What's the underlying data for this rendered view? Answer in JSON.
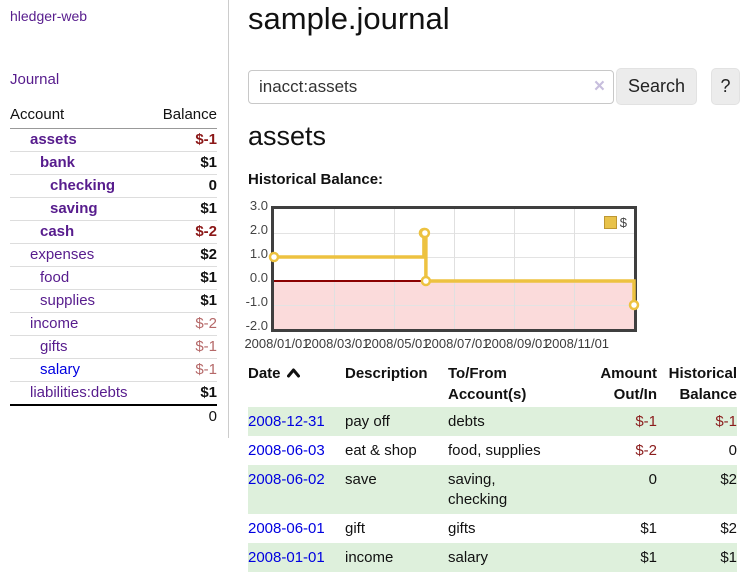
{
  "brand": "hledger-web",
  "nav": {
    "journal": "Journal"
  },
  "sidebar": {
    "account_header": "Account",
    "balance_header": "Balance",
    "accounts": [
      {
        "name": "assets",
        "balance": "$-1"
      },
      {
        "name": "bank",
        "balance": "$1"
      },
      {
        "name": "checking",
        "balance": "0"
      },
      {
        "name": "saving",
        "balance": "$1"
      },
      {
        "name": "cash",
        "balance": "$-2"
      },
      {
        "name": "expenses",
        "balance": "$2"
      },
      {
        "name": "food",
        "balance": "$1"
      },
      {
        "name": "supplies",
        "balance": "$1"
      },
      {
        "name": "income",
        "balance": "$-2"
      },
      {
        "name": "gifts",
        "balance": "$-1"
      },
      {
        "name": "salary",
        "balance": "$-1"
      },
      {
        "name": "liabilities:debts",
        "balance": "$1"
      }
    ],
    "total": "0"
  },
  "header": {
    "title": "sample.journal"
  },
  "search": {
    "value": "inacct:assets",
    "clear_icon": "×",
    "search_button": "Search",
    "help_button": "?"
  },
  "account_page": {
    "heading": "assets",
    "chart_title": "Historical Balance:"
  },
  "chart_data": {
    "type": "line",
    "title": "Historical Balance",
    "series": [
      {
        "name": "$",
        "step": true,
        "points": [
          [
            "2008-01-01",
            1
          ],
          [
            "2008-06-01",
            2
          ],
          [
            "2008-06-02",
            2
          ],
          [
            "2008-06-03",
            0
          ],
          [
            "2008-12-31",
            -1
          ]
        ]
      }
    ],
    "xrange": [
      "2008-01-01",
      "2008-12-31"
    ],
    "ylim": [
      -2,
      3
    ],
    "yticks": [
      "3.0",
      "2.0",
      "1.0",
      "0.0",
      "-1.0",
      "-2.0"
    ],
    "xticks": [
      "2008/01/01",
      "2008/03/01",
      "2008/05/01",
      "2008/07/01",
      "2008/09/01",
      "2008/11/01"
    ],
    "legend": [
      {
        "label": "$",
        "color": "#edc240"
      }
    ],
    "legend_position": "top-right",
    "grid": true,
    "line_color": "#edc240",
    "negative_fill": "#fbdbdb",
    "zero_line_color": "#8b0000"
  },
  "register": {
    "col_date": "Date",
    "col_description": "Description",
    "col_tofrom": "To/From\nAccount(s)",
    "col_amount": "Amount\nOut/In",
    "col_balance": "Historical\nBalance",
    "rows": [
      {
        "date": "2008-12-31",
        "description": "pay off",
        "accounts": "debts",
        "amount": "$-1",
        "balance": "$-1"
      },
      {
        "date": "2008-06-03",
        "description": "eat & shop",
        "accounts": "food, supplies",
        "amount": "$-2",
        "balance": "0"
      },
      {
        "date": "2008-06-02",
        "description": "save",
        "accounts": "saving,\nchecking",
        "amount": "0",
        "balance": "$2"
      },
      {
        "date": "2008-06-01",
        "description": "gift",
        "accounts": "gifts",
        "amount": "$1",
        "balance": "$2"
      },
      {
        "date": "2008-01-01",
        "description": "income",
        "accounts": "salary",
        "amount": "$1",
        "balance": "$1"
      }
    ]
  },
  "colors": {
    "link_purple": "#571c8d",
    "link_blue": "#0000e0",
    "negative_strong": "#8b1717",
    "negative_soft": "#b56868",
    "row_stripe_green": "#def0dc",
    "chart_line": "#edc240",
    "chart_negative_fill": "#fbdbdb",
    "chart_zero_line": "#8b0000"
  }
}
